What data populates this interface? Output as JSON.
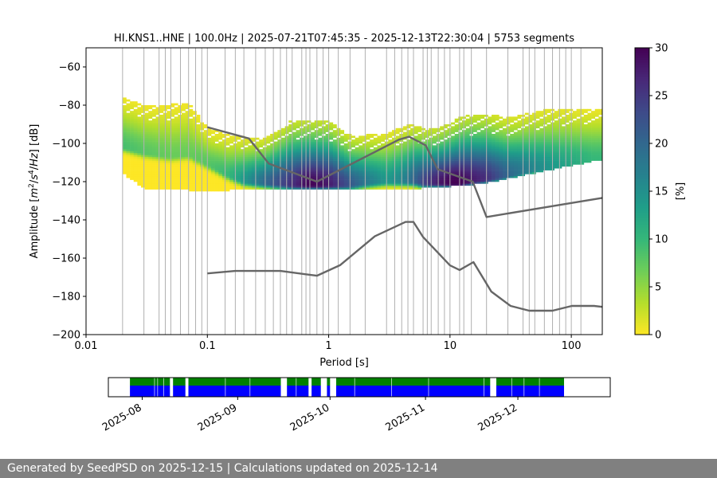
{
  "chart_data": [
    {
      "type": "heatmap",
      "title": "HI.KNS1..HNE | 100.0Hz | 2025-07-21T07:45:35 - 2025-12-13T22:30:04 | 5753 segments",
      "xlabel": "Period [s]",
      "ylabel_parts": [
        "Amplitude [",
        "m",
        "2",
        "/",
        "s",
        "4",
        "/",
        "Hz",
        "] [dB]"
      ],
      "x_scale": "log",
      "xlim": [
        0.01,
        180
      ],
      "ylim": [
        -200,
        -50
      ],
      "x_ticks": [
        0.01,
        0.1,
        1,
        10,
        100
      ],
      "x_tick_labels": [
        "0.01",
        "0.1",
        "1",
        "10",
        "100"
      ],
      "y_ticks": [
        -200,
        -180,
        -160,
        -140,
        -120,
        -100,
        -80,
        -60
      ],
      "y_tick_labels": [
        "−200",
        "−180",
        "−160",
        "−140",
        "−120",
        "−100",
        "−80",
        "−60"
      ],
      "grid": "vertical lines at period bins",
      "grid_periods": [
        0.02,
        0.03,
        0.04,
        0.045,
        0.05,
        0.06,
        0.07,
        0.08,
        0.09,
        0.1,
        0.14,
        0.17,
        0.2,
        0.25,
        0.3,
        0.35,
        0.4,
        0.45,
        0.5,
        0.6,
        0.65,
        0.7,
        0.8,
        0.9,
        1.0,
        1.2,
        1.5,
        2,
        3,
        3.5,
        4,
        4.5,
        5,
        6,
        6.5,
        7,
        8,
        9,
        10,
        12,
        13,
        15,
        20,
        30,
        40,
        45,
        50,
        60,
        70,
        80,
        90,
        100,
        120
      ],
      "colorbar": {
        "label": "[%]",
        "min": 0,
        "max": 30,
        "ticks": [
          0,
          5,
          10,
          15,
          20,
          25,
          30
        ],
        "colormap": "viridis_r"
      },
      "nhnm": {
        "name": "NHNM",
        "x": [
          0.1,
          0.22,
          0.32,
          0.8,
          3.8,
          4.6,
          6.3,
          7.9,
          15.4,
          20,
          180
        ],
        "y": [
          -91.5,
          -97.4,
          -110.5,
          -120,
          -98,
          -96.5,
          -101,
          -113.5,
          -120,
          -138.5,
          -128.5
        ]
      },
      "nlnm": {
        "name": "NLNM",
        "x": [
          0.1,
          0.17,
          0.4,
          0.8,
          1.24,
          2.4,
          4.3,
          5.0,
          6.0,
          10,
          12,
          15.6,
          21.9,
          31.6,
          45,
          70,
          101,
          154,
          180
        ],
        "y": [
          -168,
          -166.7,
          -166.7,
          -169.2,
          -163.7,
          -148.6,
          -141.1,
          -141.1,
          -149,
          -163.8,
          -166.2,
          -162.1,
          -177.5,
          -185,
          -187.5,
          -187.5,
          -185,
          -185,
          -185.5
        ]
      },
      "density_bands": {
        "description": "probability density (%) of PSD per period bin; central high-density curve with spread",
        "period": [
          0.02,
          0.03,
          0.05,
          0.07,
          0.1,
          0.15,
          0.2,
          0.3,
          0.5,
          0.7,
          1,
          1.5,
          2,
          3,
          4,
          5,
          6,
          8,
          10,
          12,
          15,
          20,
          30,
          50,
          70,
          100,
          150,
          180
        ],
        "mode_db": [
          -102,
          -105,
          -107,
          -106,
          -111,
          -117,
          -120,
          -121,
          -122,
          -122,
          -122,
          -122,
          -121,
          -120,
          -120,
          -120,
          -121,
          -121,
          -121,
          -121,
          -120,
          -119,
          -117,
          -114,
          -113,
          -111,
          -109,
          -109
        ],
        "peak_density_percent": [
          9,
          8,
          7,
          7,
          8,
          10,
          14,
          20,
          26,
          30,
          28,
          22,
          18,
          14,
          16,
          20,
          24,
          28,
          30,
          30,
          28,
          26,
          20,
          16,
          14,
          12,
          10,
          10
        ],
        "upper_db": [
          -76,
          -80,
          -80,
          -79,
          -92,
          -96,
          -97,
          -98,
          -88,
          -88,
          -88,
          -96,
          -96,
          -95,
          -92,
          -90,
          -92,
          -92,
          -90,
          -87,
          -85,
          -85,
          -87,
          -84,
          -82,
          -82,
          -82,
          -82
        ],
        "lower_db": [
          -115,
          -123,
          -124,
          -124,
          -125,
          -124,
          -124,
          -124,
          -124,
          -124,
          -124,
          -124,
          -124,
          -124,
          -124,
          -124,
          -123,
          -123,
          -122,
          -122,
          -121,
          -120,
          -118,
          -115,
          -113,
          -111,
          -109,
          -108
        ]
      }
    },
    {
      "type": "timeline",
      "xlim": [
        "2025-07-21",
        "2025-12-31"
      ],
      "x_ticks": [
        "2025-08-01",
        "2025-09-01",
        "2025-10-01",
        "2025-11-01",
        "2025-12-01"
      ],
      "x_tick_labels": [
        "2025-08",
        "2025-09",
        "2025-10",
        "2025-11",
        "2025-12"
      ],
      "series": [
        {
          "color": "#008000",
          "row": "top"
        },
        {
          "color": "#0000ff",
          "row": "bottom"
        }
      ],
      "coverage_segments": [
        [
          "2025-07-28",
          "2025-08-10"
        ],
        [
          "2025-08-11",
          "2025-08-15"
        ],
        [
          "2025-08-16",
          "2025-09-15"
        ],
        [
          "2025-09-17",
          "2025-09-24"
        ],
        [
          "2025-09-25",
          "2025-09-28"
        ],
        [
          "2025-09-30",
          "2025-10-01"
        ],
        [
          "2025-10-03",
          "2025-11-22"
        ],
        [
          "2025-11-24",
          "2025-12-16"
        ]
      ],
      "segment_breaks": [
        "2025-08-05",
        "2025-08-06",
        "2025-08-08",
        "2025-08-28",
        "2025-09-05",
        "2025-09-20",
        "2025-10-09",
        "2025-10-21",
        "2025-11-02",
        "2025-11-20",
        "2025-11-29",
        "2025-12-03",
        "2025-12-08"
      ]
    }
  ],
  "footer": {
    "text": "Generated by SeedPSD on 2025-12-15 | Calculations updated on 2025-12-14"
  }
}
